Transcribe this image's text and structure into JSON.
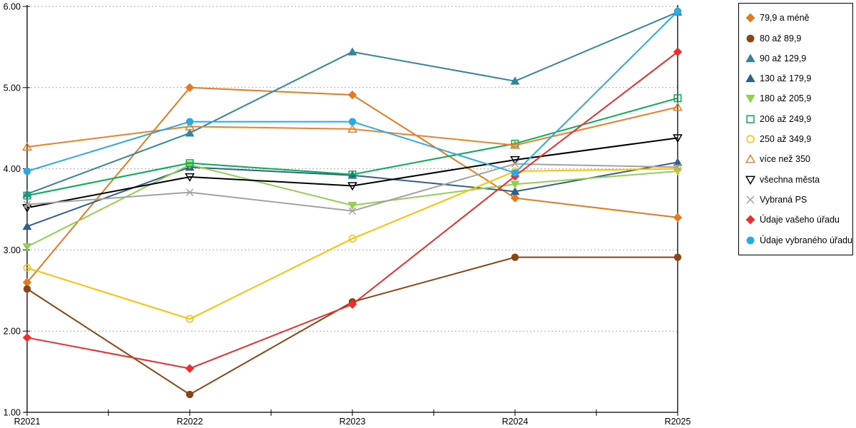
{
  "chart_data": {
    "type": "line",
    "categories": [
      "R2021",
      "R2022",
      "R2023",
      "R2024",
      "R2025"
    ],
    "ylim": [
      1.0,
      6.0
    ],
    "yticks": [
      {
        "value": 1,
        "label": "1.00"
      },
      {
        "value": 2,
        "label": "2.00"
      },
      {
        "value": 3,
        "label": "3.00"
      },
      {
        "value": 4,
        "label": "4.00"
      },
      {
        "value": 5,
        "label": "5.00"
      },
      {
        "value": 6,
        "label": "6.00"
      }
    ],
    "grid": "horizontal-dotted",
    "grid_color": "#ABABAB",
    "axis_color": "#000000",
    "legend_position": "right",
    "series": [
      {
        "name": "79,9 a méně",
        "color": "#E8791E",
        "marker": "diamond",
        "fill": "solid",
        "values": [
          2.6,
          5.0,
          4.91,
          3.64,
          3.4
        ]
      },
      {
        "name": "80 až 89,9",
        "color": "#8B4513",
        "marker": "circle",
        "fill": "solid",
        "values": [
          2.52,
          1.22,
          2.36,
          2.91,
          2.91
        ]
      },
      {
        "name": "90 až 129,9",
        "color": "#31859C",
        "marker": "triangle-up",
        "fill": "solid",
        "values": [
          3.69,
          4.44,
          5.44,
          5.08,
          5.93
        ]
      },
      {
        "name": "130 až 179,9",
        "color": "#31608C",
        "marker": "triangle-up",
        "fill": "solid",
        "values": [
          3.29,
          4.02,
          3.92,
          3.72,
          4.08
        ]
      },
      {
        "name": "180 až 205,9",
        "color": "#92D050",
        "marker": "triangle-down",
        "fill": "solid",
        "values": [
          3.04,
          4.05,
          3.55,
          3.81,
          3.97
        ]
      },
      {
        "name": "206 až 249,9",
        "color": "#00B050",
        "marker": "square",
        "fill": "hollow",
        "values": [
          3.67,
          4.07,
          3.93,
          4.31,
          4.87
        ]
      },
      {
        "name": "250 až 349,9",
        "color": "#FFC000",
        "marker": "circle",
        "fill": "hollow",
        "values": [
          2.78,
          2.15,
          3.14,
          3.97,
          4.0
        ]
      },
      {
        "name": "více než 350",
        "color": "#F07F29",
        "marker": "triangle-up",
        "fill": "hollow",
        "values": [
          4.27,
          4.52,
          4.49,
          4.29,
          4.76
        ]
      },
      {
        "name": "všechna města",
        "color": "#000000",
        "marker": "triangle-down",
        "fill": "hollow",
        "values": [
          3.52,
          3.9,
          3.79,
          4.11,
          4.38
        ]
      },
      {
        "name": "Vybraná PS",
        "color": "#A3A3A3",
        "marker": "x",
        "fill": "stroke",
        "values": [
          3.56,
          3.71,
          3.48,
          4.06,
          4.02
        ]
      },
      {
        "name": "Údaje vašeho úřadu",
        "color": "#F22B2B",
        "marker": "diamond",
        "fill": "solid",
        "values": [
          1.92,
          1.54,
          2.33,
          3.91,
          5.44
        ]
      },
      {
        "name": "Údaje vybraného úřadu",
        "color": "#29ABE2",
        "marker": "circle",
        "fill": "solid",
        "values": [
          3.97,
          4.58,
          4.58,
          3.95,
          5.94
        ]
      }
    ]
  }
}
